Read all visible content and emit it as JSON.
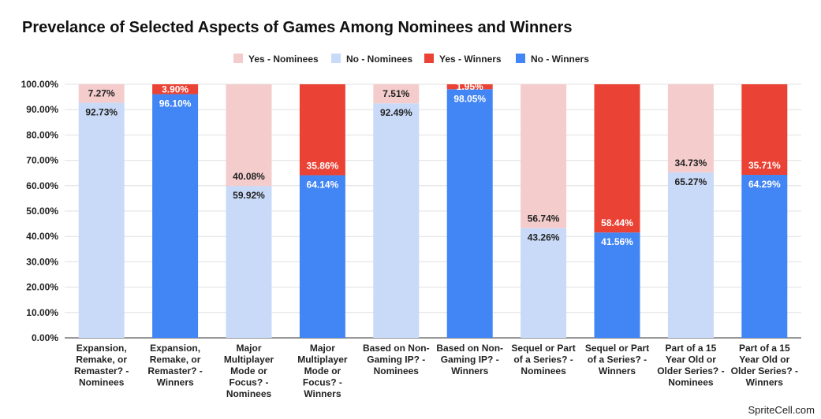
{
  "title": "Prevelance of Selected Aspects of Games Among Nominees and Winners",
  "watermark": "SpriteCell.com",
  "colors": {
    "yes_nominees": "#f4cccc",
    "no_nominees": "#c9daf8",
    "yes_winners": "#ea4335",
    "no_winners": "#4285f4",
    "grid": "#e0e0e0",
    "axis": "#333333"
  },
  "chart_data": {
    "type": "bar",
    "stacked": true,
    "percent": true,
    "title": "Prevelance of Selected Aspects of Games Among Nominees and Winners",
    "ylim": [
      0,
      100
    ],
    "yticks": [
      "0.00%",
      "10.00%",
      "20.00%",
      "30.00%",
      "40.00%",
      "50.00%",
      "60.00%",
      "70.00%",
      "80.00%",
      "90.00%",
      "100.00%"
    ],
    "grid": true,
    "legend_position": "top",
    "legend": [
      "Yes - Nominees",
      "No - Nominees",
      "Yes - Winners",
      "No - Winners"
    ],
    "categories": [
      "Expansion, Remake, or Remaster? - Nominees",
      "Expansion, Remake, or Remaster? - Winners",
      "Major Multiplayer Mode or Focus? - Nominees",
      "Major Multiplayer Mode or Focus? - Winners",
      "Based on Non-Gaming IP? - Nominees",
      "Based on Non-Gaming IP? - Winners",
      "Sequel or Part of a Series? - Nominees",
      "Sequel or Part of a Series? - Winners",
      "Part of a 15 Year Old or Older Series? - Nominees",
      "Part of a 15 Year Old or Older Series? - Winners"
    ],
    "category_lines": [
      [
        "Expansion,",
        "Remake, or",
        "Remaster? -",
        "Nominees"
      ],
      [
        "Expansion,",
        "Remake, or",
        "Remaster? -",
        "Winners"
      ],
      [
        "Major",
        "Multiplayer",
        "Mode or",
        "Focus? -",
        "Nominees"
      ],
      [
        "Major",
        "Multiplayer",
        "Mode or",
        "Focus? -",
        "Winners"
      ],
      [
        "Based on Non-",
        "Gaming IP? -",
        "Nominees"
      ],
      [
        "Based on Non-",
        "Gaming IP? -",
        "Winners"
      ],
      [
        "Sequel or Part",
        "of a Series? -",
        "Nominees"
      ],
      [
        "Sequel or Part",
        "of a Series? -",
        "Winners"
      ],
      [
        "Part of a 15",
        "Year Old or",
        "Older Series? -",
        "Nominees"
      ],
      [
        "Part of a 15",
        "Year Old or",
        "Older Series? -",
        "Winners"
      ]
    ],
    "bars": [
      {
        "group": "nominees",
        "no": 92.73,
        "yes": 7.27,
        "no_label": "92.73%",
        "yes_label": "7.27%"
      },
      {
        "group": "winners",
        "no": 96.1,
        "yes": 3.9,
        "no_label": "96.10%",
        "yes_label": "3.90%"
      },
      {
        "group": "nominees",
        "no": 59.92,
        "yes": 40.08,
        "no_label": "59.92%",
        "yes_label": "40.08%"
      },
      {
        "group": "winners",
        "no": 64.14,
        "yes": 35.86,
        "no_label": "64.14%",
        "yes_label": "35.86%"
      },
      {
        "group": "nominees",
        "no": 92.49,
        "yes": 7.51,
        "no_label": "92.49%",
        "yes_label": "7.51%"
      },
      {
        "group": "winners",
        "no": 98.05,
        "yes": 1.95,
        "no_label": "98.05%",
        "yes_label": "1.95%"
      },
      {
        "group": "nominees",
        "no": 43.26,
        "yes": 56.74,
        "no_label": "43.26%",
        "yes_label": "56.74%"
      },
      {
        "group": "winners",
        "no": 41.56,
        "yes": 58.44,
        "no_label": "41.56%",
        "yes_label": "58.44%"
      },
      {
        "group": "nominees",
        "no": 65.27,
        "yes": 34.73,
        "no_label": "65.27%",
        "yes_label": "34.73%"
      },
      {
        "group": "winners",
        "no": 64.29,
        "yes": 35.71,
        "no_label": "64.29%",
        "yes_label": "35.71%"
      }
    ]
  }
}
